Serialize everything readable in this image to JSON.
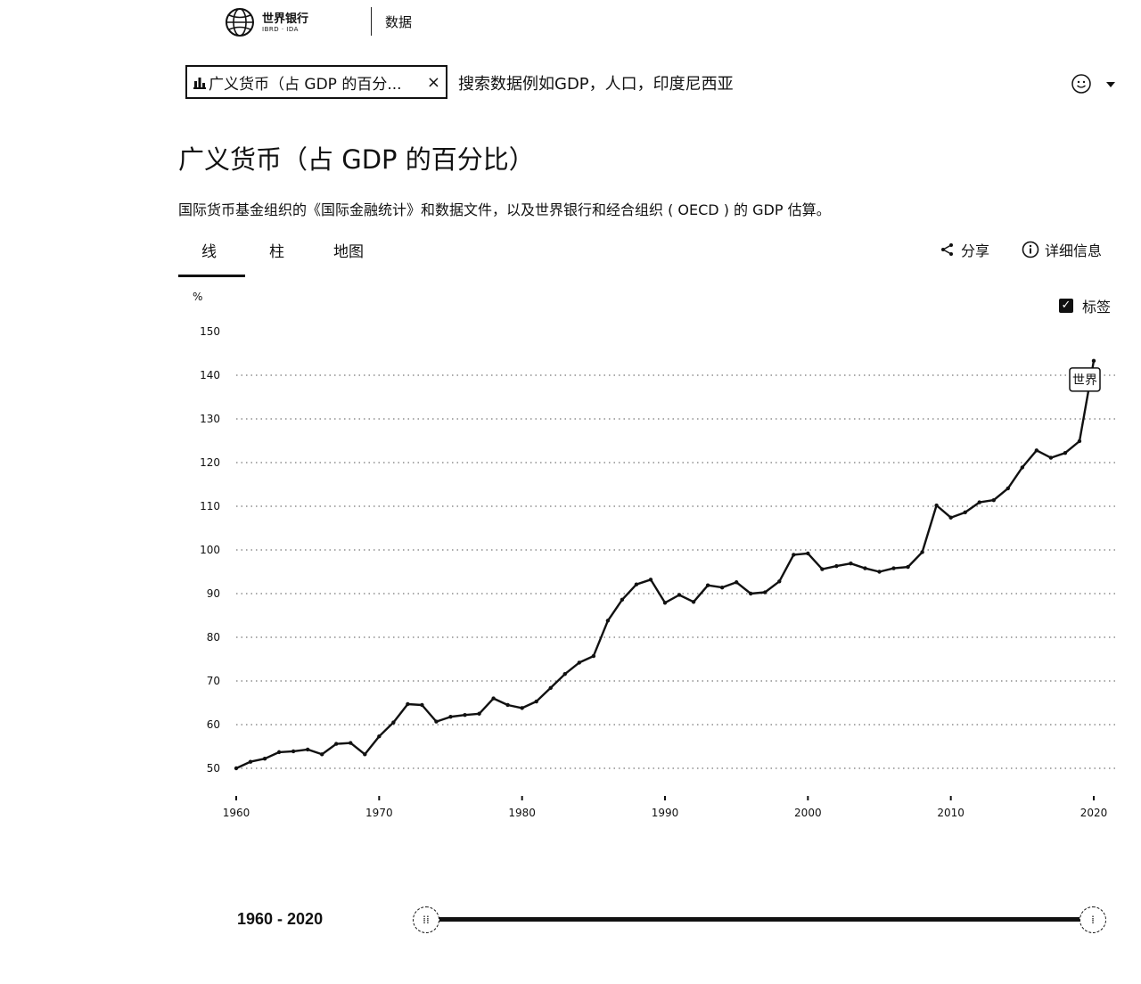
{
  "header": {
    "logo_name": "世界银行",
    "logo_sub": "IBRD · IDA",
    "data_link": "数据"
  },
  "search": {
    "chip_text": "广义货币（占 GDP 的百分...",
    "chip_close": "×",
    "placeholder": "搜索数据例如GDP，人口，印度尼西亚"
  },
  "page": {
    "title": "广义货币（占 GDP 的百分比）",
    "description": "国际货币基金组织的《国际金融统计》和数据文件，以及世界银行和经合组织 ( OECD ) 的 GDP 估算。"
  },
  "tabs": [
    {
      "label": "线",
      "active": true
    },
    {
      "label": "柱",
      "active": false
    },
    {
      "label": "地图",
      "active": false
    }
  ],
  "tools": {
    "share": "分享",
    "details": "详细信息",
    "labels_toggle": "标签",
    "labels_checked": true
  },
  "chart_data": {
    "type": "line",
    "ylabel": "%",
    "ylim": [
      45,
      155
    ],
    "xlim": [
      1960,
      2020
    ],
    "yticks": [
      50,
      60,
      70,
      80,
      90,
      100,
      110,
      120,
      130,
      140,
      150
    ],
    "xticks": [
      1960,
      1970,
      1980,
      1990,
      2000,
      2010,
      2020
    ],
    "grid": "dotted horizontal",
    "series": [
      {
        "name": "世界",
        "x": [
          1960,
          1961,
          1962,
          1963,
          1964,
          1965,
          1966,
          1967,
          1968,
          1969,
          1970,
          1971,
          1972,
          1973,
          1974,
          1975,
          1976,
          1977,
          1978,
          1979,
          1980,
          1981,
          1982,
          1983,
          1984,
          1985,
          1986,
          1987,
          1988,
          1989,
          1990,
          1991,
          1992,
          1993,
          1994,
          1995,
          1996,
          1997,
          1998,
          1999,
          2000,
          2001,
          2002,
          2003,
          2004,
          2005,
          2006,
          2007,
          2008,
          2009,
          2010,
          2011,
          2012,
          2013,
          2014,
          2015,
          2016,
          2017,
          2018,
          2019,
          2020
        ],
        "y": [
          50.0,
          51.5,
          52.2,
          53.7,
          53.9,
          54.3,
          53.2,
          55.6,
          55.8,
          53.2,
          57.3,
          60.5,
          64.7,
          64.5,
          60.7,
          61.8,
          62.2,
          62.5,
          66.0,
          64.5,
          63.8,
          65.3,
          68.4,
          71.6,
          74.2,
          75.7,
          83.8,
          88.6,
          92.1,
          93.2,
          87.9,
          89.7,
          88.1,
          91.9,
          91.4,
          92.6,
          90.0,
          90.3,
          92.8,
          98.9,
          99.2,
          95.6,
          96.3,
          96.9,
          95.8,
          95.0,
          95.8,
          96.1,
          99.5,
          110.2,
          107.4,
          108.6,
          110.9,
          111.4,
          114.1,
          118.9,
          122.8,
          121.1,
          122.2,
          124.9,
          143.3
        ]
      }
    ]
  },
  "range": {
    "label": "1960 - 2020",
    "start": 1960,
    "end": 2020
  }
}
